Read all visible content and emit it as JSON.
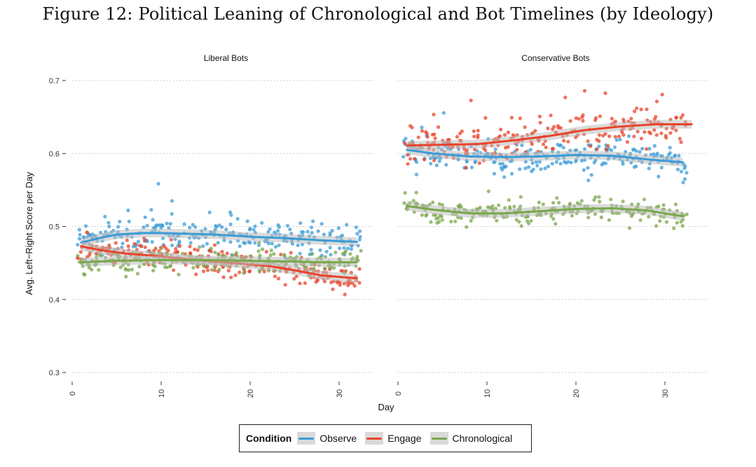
{
  "figure_title": "Figure 12: Political Leaning of Chronological and Bot Timelines (by Ideology)",
  "colors": {
    "Observe": "#3b9bd6",
    "Engage": "#e8432b",
    "Chronological": "#79a74b",
    "ribbon": "#bdbdbd",
    "grid": "#bdbdbd"
  },
  "legend": {
    "title": "Condition",
    "items": [
      "Observe",
      "Engage",
      "Chronological"
    ]
  },
  "chart_data": {
    "type": "scatter",
    "title": "Figure 12: Political Leaning of Chronological and Bot Timelines (by Ideology)",
    "xlabel": "Day",
    "ylabel": "Avg. Left−Right Score per Day",
    "ylim": [
      0.3,
      0.7
    ],
    "yticks": [
      "0.3",
      "0.4",
      "0.5",
      "0.6",
      "0.7"
    ],
    "xlim": [
      0,
      33
    ],
    "xticks": [
      "0",
      "10",
      "20",
      "30"
    ],
    "grid": "horizontal dotted",
    "legend_position": "bottom",
    "panels": [
      {
        "name": "Liberal Bots",
        "series": [
          {
            "name": "Observe",
            "trend": [
              [
                1,
                0.478
              ],
              [
                3,
                0.484
              ],
              [
                5,
                0.489
              ],
              [
                8,
                0.491
              ],
              [
                10,
                0.491
              ],
              [
                13,
                0.49
              ],
              [
                16,
                0.489
              ],
              [
                20,
                0.486
              ],
              [
                24,
                0.484
              ],
              [
                28,
                0.481
              ],
              [
                32,
                0.479
              ]
            ],
            "spread": 0.02
          },
          {
            "name": "Engage",
            "trend": [
              [
                1,
                0.473
              ],
              [
                3,
                0.468
              ],
              [
                6,
                0.463
              ],
              [
                10,
                0.459
              ],
              [
                14,
                0.454
              ],
              [
                18,
                0.45
              ],
              [
                22,
                0.446
              ],
              [
                25,
                0.44
              ],
              [
                28,
                0.433
              ],
              [
                32,
                0.429
              ]
            ],
            "spread": 0.016
          },
          {
            "name": "Chronological",
            "trend": [
              [
                1,
                0.451
              ],
              [
                5,
                0.453
              ],
              [
                10,
                0.454
              ],
              [
                15,
                0.454
              ],
              [
                20,
                0.453
              ],
              [
                25,
                0.452
              ],
              [
                28,
                0.451
              ],
              [
                32,
                0.451
              ]
            ],
            "spread": 0.014
          }
        ]
      },
      {
        "name": "Conservative Bots",
        "series": [
          {
            "name": "Observe",
            "trend": [
              [
                1,
                0.605
              ],
              [
                4,
                0.6
              ],
              [
                8,
                0.596
              ],
              [
                12,
                0.595
              ],
              [
                16,
                0.596
              ],
              [
                20,
                0.598
              ],
              [
                24,
                0.597
              ],
              [
                28,
                0.592
              ],
              [
                32,
                0.588
              ]
            ],
            "spread": 0.017
          },
          {
            "name": "Engage",
            "trend": [
              [
                1,
                0.611
              ],
              [
                5,
                0.612
              ],
              [
                9,
                0.613
              ],
              [
                13,
                0.618
              ],
              [
                17,
                0.624
              ],
              [
                21,
                0.632
              ],
              [
                25,
                0.637
              ],
              [
                29,
                0.64
              ],
              [
                33,
                0.64
              ]
            ],
            "spread": 0.022
          },
          {
            "name": "Chronological",
            "trend": [
              [
                1,
                0.528
              ],
              [
                4,
                0.523
              ],
              [
                8,
                0.518
              ],
              [
                12,
                0.518
              ],
              [
                16,
                0.521
              ],
              [
                20,
                0.524
              ],
              [
                24,
                0.525
              ],
              [
                28,
                0.522
              ],
              [
                32,
                0.514
              ]
            ],
            "spread": 0.014
          }
        ]
      }
    ]
  }
}
